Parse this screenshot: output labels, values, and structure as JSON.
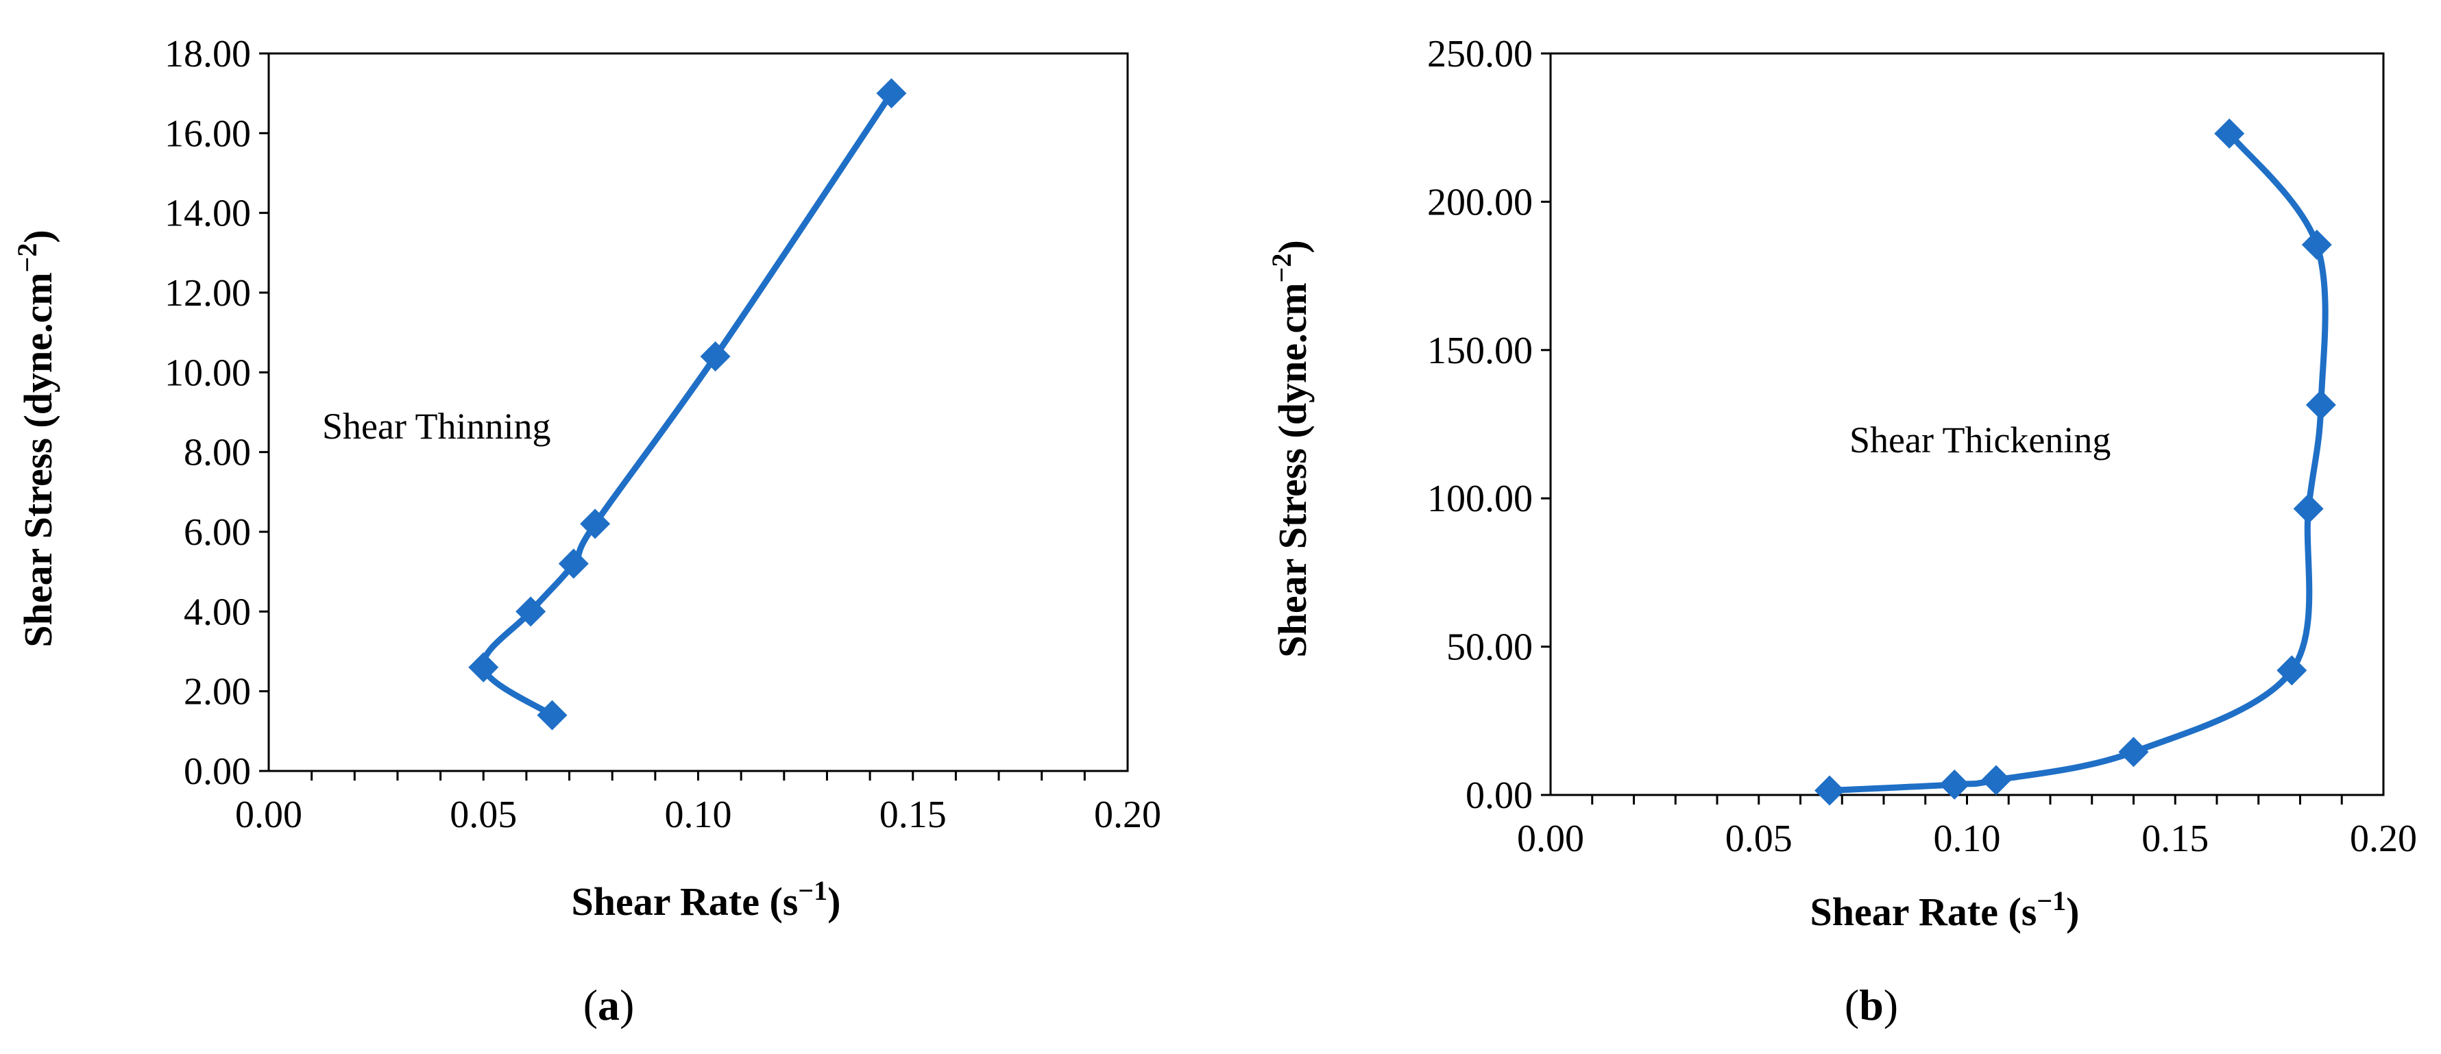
{
  "chart_data": [
    {
      "type": "line",
      "panel_label": "(a)",
      "panel_letter": "a",
      "xlabel_main": "Shear Rate (s",
      "xlabel_sup": "−1",
      "xlabel_end": ")",
      "ylabel_main": "Shear Stress (dyne.cm",
      "ylabel_sup": "−2",
      "ylabel_end": ")",
      "annotation": "Shear Thinning",
      "xlim": [
        0,
        0.2
      ],
      "ylim": [
        0,
        18
      ],
      "x_ticks": [
        "0.00",
        "0.05",
        "0.10",
        "0.15",
        "0.20"
      ],
      "y_ticks": [
        "0.00",
        "2.00",
        "4.00",
        "6.00",
        "8.00",
        "10.00",
        "12.00",
        "14.00",
        "16.00",
        "18.00"
      ],
      "x_tick_values": [
        0,
        0.05,
        0.1,
        0.15,
        0.2
      ],
      "y_tick_values": [
        0,
        2,
        4,
        6,
        8,
        10,
        12,
        14,
        16,
        18
      ],
      "x_minor_step": 0.01,
      "grid": false,
      "color": "#1f6fc6",
      "marker": "diamond",
      "series": [
        {
          "x": [
            0.066,
            0.05,
            0.061,
            0.071,
            0.076,
            0.104,
            0.145
          ],
          "y": [
            1.4,
            2.6,
            4.0,
            5.2,
            6.2,
            10.4,
            17.0
          ]
        }
      ]
    },
    {
      "type": "line",
      "panel_label": "(b)",
      "panel_letter": "b",
      "xlabel_main": "Shear Rate (s",
      "xlabel_sup": "−1",
      "xlabel_end": ")",
      "ylabel_main": "Shear Stress (dyne.cm",
      "ylabel_sup": "−2",
      "ylabel_end": ")",
      "annotation": "Shear Thickening",
      "xlim": [
        0,
        0.2
      ],
      "ylim": [
        0,
        250
      ],
      "x_ticks": [
        "0.00",
        "0.05",
        "0.10",
        "0.15",
        "0.20"
      ],
      "y_ticks": [
        "0.00",
        "50.00",
        "100.00",
        "150.00",
        "200.00",
        "250.00"
      ],
      "x_tick_values": [
        0,
        0.05,
        0.1,
        0.15,
        0.2
      ],
      "y_tick_values": [
        0,
        50,
        100,
        150,
        200,
        250
      ],
      "x_minor_step": 0.01,
      "grid": false,
      "color": "#1f6fc6",
      "marker": "diamond",
      "series": [
        {
          "x": [
            0.067,
            0.097,
            0.107,
            0.14,
            0.178,
            0.182,
            0.185,
            0.184,
            0.163
          ],
          "y": [
            1.5,
            3.5,
            5.0,
            14.5,
            42.0,
            96.5,
            131.5,
            185.5,
            223.0
          ]
        }
      ]
    }
  ]
}
